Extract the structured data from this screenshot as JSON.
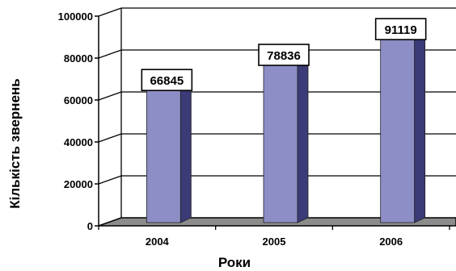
{
  "chart_data": {
    "type": "bar",
    "categories": [
      "2004",
      "2005",
      "2006"
    ],
    "values": [
      66845,
      78836,
      91119
    ],
    "data_labels": [
      "66845",
      "78836",
      "91119"
    ],
    "xlabel": "Роки",
    "ylabel": "Кількість звернень",
    "ylim": [
      0,
      100000
    ],
    "yticks": [
      0,
      20000,
      40000,
      60000,
      80000,
      100000
    ],
    "ytick_labels": [
      "0",
      "20000",
      "40000",
      "60000",
      "80000",
      "100000"
    ],
    "grid": true,
    "style": "3d",
    "colors": {
      "bar_front": "#8e8ec6",
      "bar_side": "#3b3b78",
      "floor": "#8c8c8c",
      "grid": "#000000"
    }
  }
}
